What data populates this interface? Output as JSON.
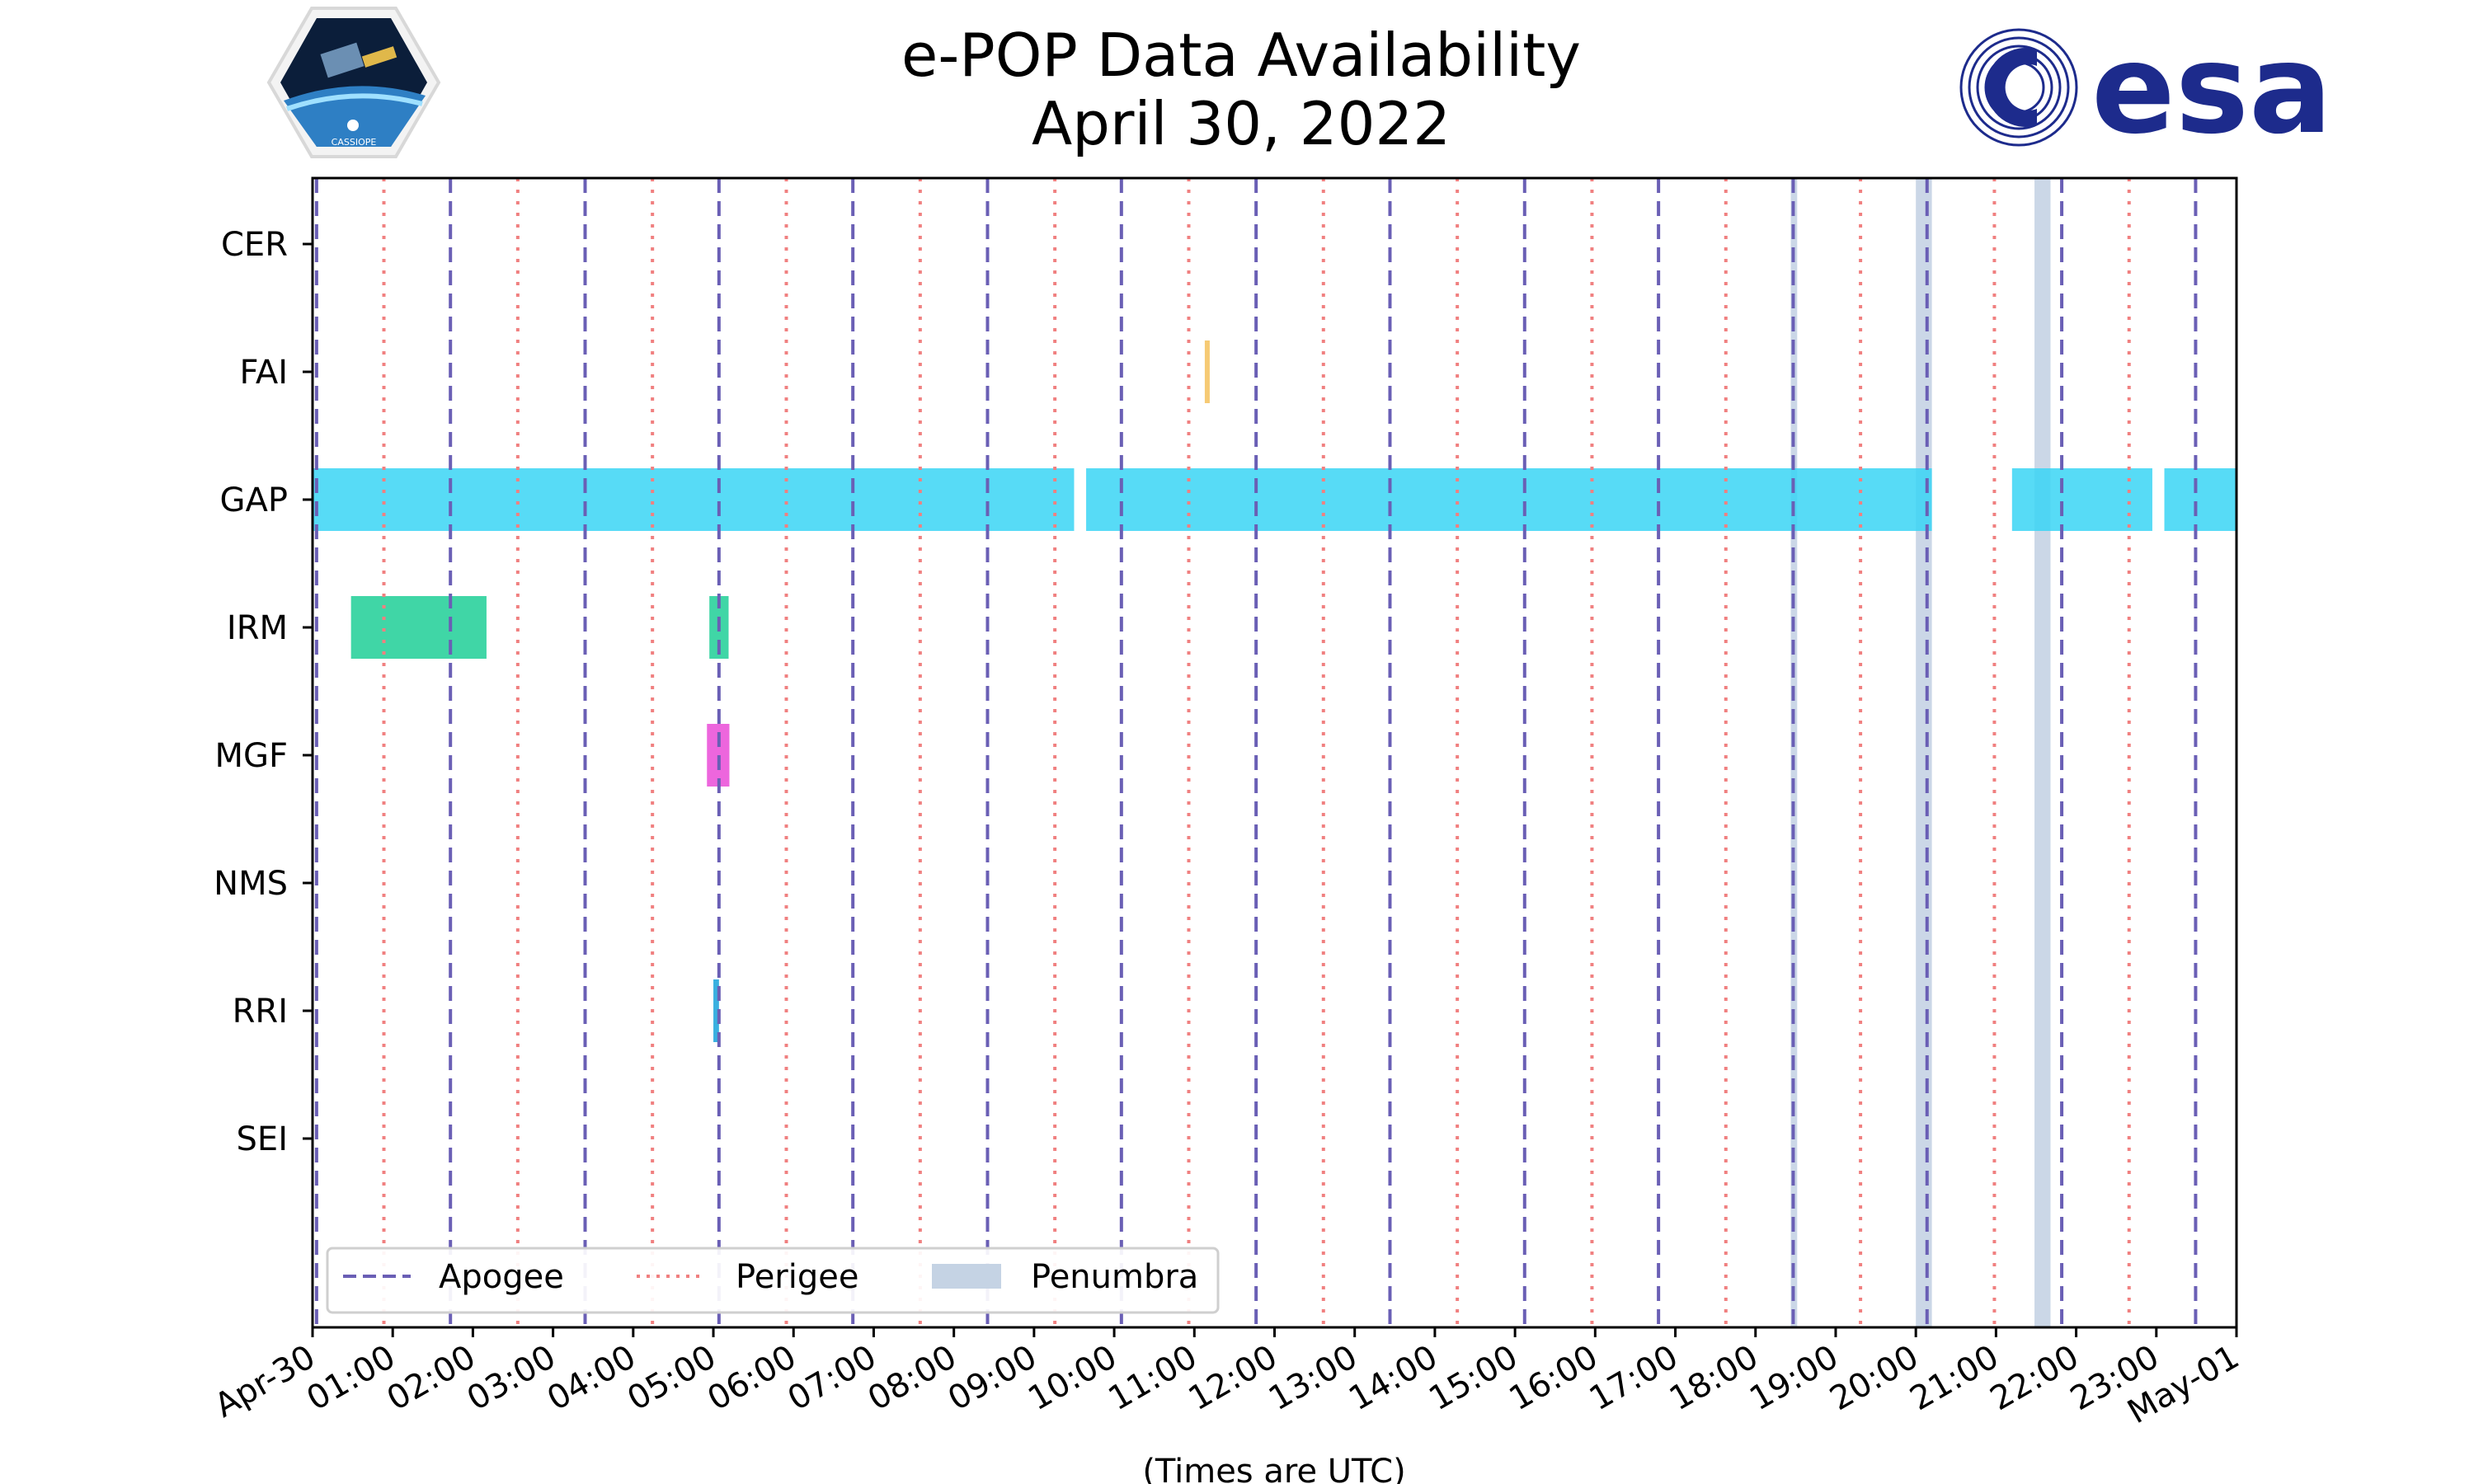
{
  "header": {
    "title_line1": "e-POP Data Availability",
    "title_line2": "April 30, 2022",
    "left_logo_text": "CASSIOPE",
    "right_logo_text": "esa"
  },
  "chart_data": {
    "type": "timeline",
    "title": "e-POP Data Availability",
    "subtitle": "April 30, 2022",
    "xlabel": "(Times are UTC)",
    "xlim_hours": [
      0,
      24
    ],
    "x_tick_labels": [
      "Apr-30",
      "01:00",
      "02:00",
      "03:00",
      "04:00",
      "05:00",
      "06:00",
      "07:00",
      "08:00",
      "09:00",
      "10:00",
      "11:00",
      "12:00",
      "13:00",
      "14:00",
      "15:00",
      "16:00",
      "17:00",
      "18:00",
      "19:00",
      "20:00",
      "21:00",
      "22:00",
      "23:00",
      "May-01"
    ],
    "instruments": [
      "CER",
      "FAI",
      "GAP",
      "IRM",
      "MGF",
      "NMS",
      "RRI",
      "SEI"
    ],
    "apogee_hours": [
      0.05,
      1.72,
      3.4,
      5.07,
      6.74,
      8.42,
      10.09,
      11.77,
      13.44,
      15.12,
      16.79,
      18.47,
      20.14,
      21.82,
      23.49
    ],
    "perigee_hours": [
      0.89,
      2.56,
      4.24,
      5.91,
      7.58,
      9.26,
      10.93,
      12.61,
      14.28,
      15.96,
      17.63,
      19.31,
      20.98,
      22.66
    ],
    "penumbra_hours": [
      [
        18.44,
        18.52
      ],
      [
        20.0,
        20.2
      ],
      [
        21.48,
        21.68
      ]
    ],
    "availability": [
      {
        "instrument": "CER",
        "intervals": []
      },
      {
        "instrument": "FAI",
        "intervals": [
          [
            11.13,
            11.18
          ]
        ]
      },
      {
        "instrument": "GAP",
        "intervals": [
          [
            0.0,
            9.5
          ],
          [
            9.65,
            20.2
          ],
          [
            21.2,
            22.95
          ],
          [
            23.1,
            24.0
          ]
        ]
      },
      {
        "instrument": "IRM",
        "intervals": [
          [
            0.48,
            2.17
          ],
          [
            4.95,
            5.19
          ]
        ]
      },
      {
        "instrument": "MGF",
        "intervals": [
          [
            4.92,
            5.2
          ]
        ]
      },
      {
        "instrument": "NMS",
        "intervals": []
      },
      {
        "instrument": "RRI",
        "intervals": [
          [
            5.0,
            5.07
          ]
        ]
      },
      {
        "instrument": "SEI",
        "intervals": []
      }
    ],
    "instrument_colors": {
      "CER": "#ff7f0e",
      "FAI": "#f5c15c",
      "GAP": "#3ad5f5",
      "IRM": "#1fcf96",
      "MGF": "#ea4bd7",
      "NMS": "#7f7f7f",
      "RRI": "#16a2da",
      "SEI": "#8c564b"
    },
    "legend": {
      "placement": "lower-left",
      "entries": [
        {
          "label": "Apogee",
          "style": "dashed",
          "color": "#6a5fb5"
        },
        {
          "label": "Perigee",
          "style": "dotted",
          "color": "#f08080"
        },
        {
          "label": "Penumbra",
          "style": "band",
          "color": "#c5d3e4"
        }
      ]
    }
  }
}
